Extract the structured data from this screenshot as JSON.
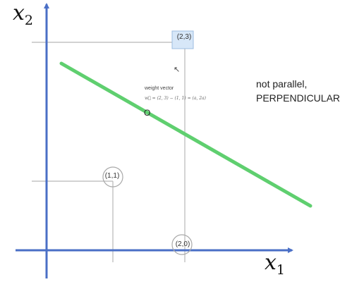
{
  "axes": {
    "x1_letter": "x",
    "x1_sub": "1",
    "x2_letter": "x",
    "x2_sub": "2"
  },
  "points": {
    "p23": "(2,3)",
    "p11": "(1,1)",
    "p20": "(2,0)"
  },
  "weight_vector": {
    "title": "weight vector",
    "equation": "w⃗ = (2, 3) − (1, 1) = (a, 2a)"
  },
  "marker": "O",
  "note": {
    "line1": "not parallel,",
    "line2": "PERPENDICULAR"
  },
  "colors": {
    "axis": "#4a6fc6",
    "line": "#5fcf6f",
    "guide": "#b8b8b8"
  }
}
